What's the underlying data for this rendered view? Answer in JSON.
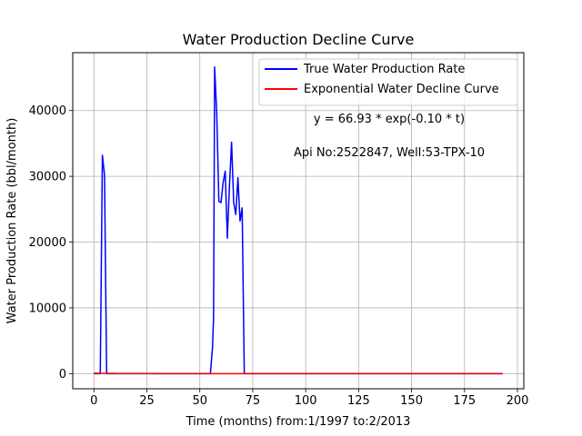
{
  "chart_data": {
    "type": "line",
    "title": "Water Production Decline Curve",
    "xlabel": "Time (months) from:1/1997 to:2/2013",
    "ylabel": "Water Production Rate (bbl/month)",
    "xlim": [
      -10,
      203
    ],
    "ylim": [
      -2300,
      48800
    ],
    "x_ticks": [
      0,
      25,
      50,
      75,
      100,
      125,
      150,
      175,
      200
    ],
    "y_ticks": [
      0,
      10000,
      20000,
      30000,
      40000
    ],
    "grid": true,
    "legend_position": "top-right",
    "annotations": [
      "y = 66.93 * exp(-0.10 * t)",
      "Api No:2522847, Well:53-TPX-10"
    ],
    "series": [
      {
        "name": "True Water Production Rate",
        "color": "#0000ff",
        "points": [
          [
            0,
            0
          ],
          [
            3,
            0
          ],
          [
            4,
            33200
          ],
          [
            5,
            30200
          ],
          [
            6,
            0
          ],
          [
            7,
            0
          ],
          [
            55,
            0
          ],
          [
            56,
            4000
          ],
          [
            56.5,
            8500
          ],
          [
            57,
            46600
          ],
          [
            58,
            39500
          ],
          [
            59,
            26200
          ],
          [
            60,
            26000
          ],
          [
            61,
            29000
          ],
          [
            62,
            30800
          ],
          [
            63,
            20600
          ],
          [
            64,
            28500
          ],
          [
            65,
            35200
          ],
          [
            66,
            26000
          ],
          [
            67,
            24200
          ],
          [
            68,
            29800
          ],
          [
            69,
            23200
          ],
          [
            70,
            25200
          ],
          [
            71,
            0
          ],
          [
            193,
            0
          ]
        ]
      },
      {
        "name": "Exponential Water Decline Curve",
        "color": "#ff0000",
        "equation": {
          "a": 66.93,
          "b": -0.1
        },
        "x_range": [
          0,
          193
        ]
      }
    ]
  }
}
